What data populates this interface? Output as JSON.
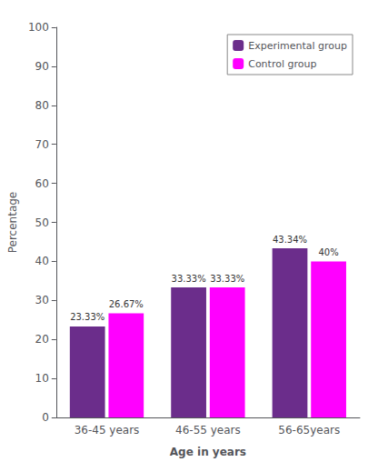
{
  "chart_data": {
    "type": "bar",
    "categories": [
      "36-45 years",
      "46-55 years",
      "56-65years"
    ],
    "series": [
      {
        "name": "Experimental group",
        "color": "#6B2D8B",
        "values": [
          23.33,
          33.33,
          43.34
        ],
        "value_labels": [
          "23.33%",
          "33.33%",
          "43.34%"
        ]
      },
      {
        "name": "Control group",
        "color": "#FF00FF",
        "values": [
          26.67,
          33.33,
          40.0
        ],
        "value_labels": [
          "26.67%",
          "33.33%",
          "40%"
        ]
      }
    ],
    "xlabel": "Age in years",
    "ylabel": "Percentage",
    "ylim": [
      0,
      100
    ],
    "yticks": [
      0,
      10,
      20,
      30,
      40,
      50,
      60,
      70,
      80,
      90,
      100
    ],
    "grid": false,
    "legend": "upper right",
    "data_labels": true
  }
}
